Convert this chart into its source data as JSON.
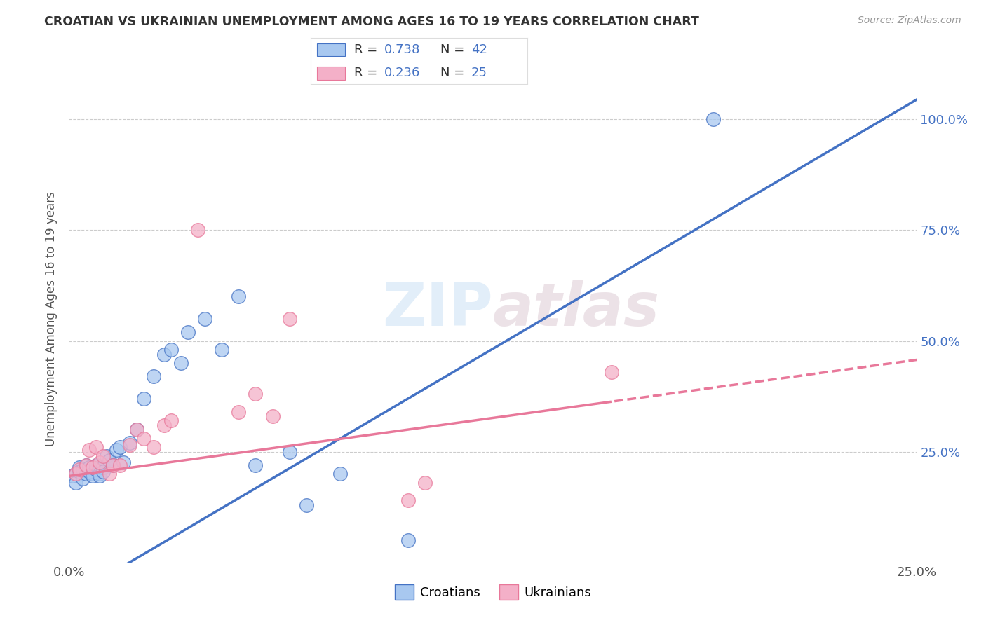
{
  "title": "CROATIAN VS UKRAINIAN UNEMPLOYMENT AMONG AGES 16 TO 19 YEARS CORRELATION CHART",
  "source": "Source: ZipAtlas.com",
  "ylabel": "Unemployment Among Ages 16 to 19 years",
  "xlim": [
    0.0,
    0.25
  ],
  "ylim": [
    0.0,
    1.1
  ],
  "croatians_R": "0.738",
  "croatians_N": "42",
  "ukrainians_R": "0.236",
  "ukrainians_N": "25",
  "croatian_color": "#A8C8F0",
  "ukrainian_color": "#F4B0C8",
  "line_color_croatian": "#4472C4",
  "line_color_ukrainian": "#E8789A",
  "background_color": "#FFFFFF",
  "croatians_x": [
    0.001,
    0.002,
    0.002,
    0.003,
    0.003,
    0.004,
    0.004,
    0.005,
    0.005,
    0.006,
    0.006,
    0.007,
    0.007,
    0.008,
    0.008,
    0.009,
    0.009,
    0.01,
    0.01,
    0.011,
    0.012,
    0.013,
    0.014,
    0.015,
    0.016,
    0.018,
    0.02,
    0.022,
    0.025,
    0.028,
    0.03,
    0.033,
    0.035,
    0.04,
    0.045,
    0.05,
    0.055,
    0.065,
    0.07,
    0.08,
    0.1,
    0.19
  ],
  "croatians_y": [
    0.195,
    0.2,
    0.18,
    0.215,
    0.205,
    0.19,
    0.21,
    0.2,
    0.22,
    0.205,
    0.215,
    0.2,
    0.195,
    0.21,
    0.22,
    0.2,
    0.195,
    0.215,
    0.205,
    0.24,
    0.23,
    0.22,
    0.255,
    0.26,
    0.225,
    0.27,
    0.3,
    0.37,
    0.42,
    0.47,
    0.48,
    0.45,
    0.52,
    0.55,
    0.48,
    0.6,
    0.22,
    0.25,
    0.13,
    0.2,
    0.05,
    1.0
  ],
  "ukrainians_x": [
    0.002,
    0.003,
    0.005,
    0.006,
    0.007,
    0.008,
    0.009,
    0.01,
    0.012,
    0.013,
    0.015,
    0.018,
    0.02,
    0.022,
    0.025,
    0.028,
    0.03,
    0.038,
    0.05,
    0.055,
    0.06,
    0.065,
    0.1,
    0.105,
    0.16
  ],
  "ukrainians_y": [
    0.2,
    0.21,
    0.22,
    0.255,
    0.215,
    0.26,
    0.225,
    0.24,
    0.2,
    0.22,
    0.22,
    0.265,
    0.3,
    0.28,
    0.26,
    0.31,
    0.32,
    0.75,
    0.34,
    0.38,
    0.33,
    0.55,
    0.14,
    0.18,
    0.43
  ],
  "line_intercept_croatian": -0.08,
  "line_slope_croatian": 4.5,
  "line_intercept_ukrainian": 0.195,
  "line_slope_ukrainian": 1.05
}
